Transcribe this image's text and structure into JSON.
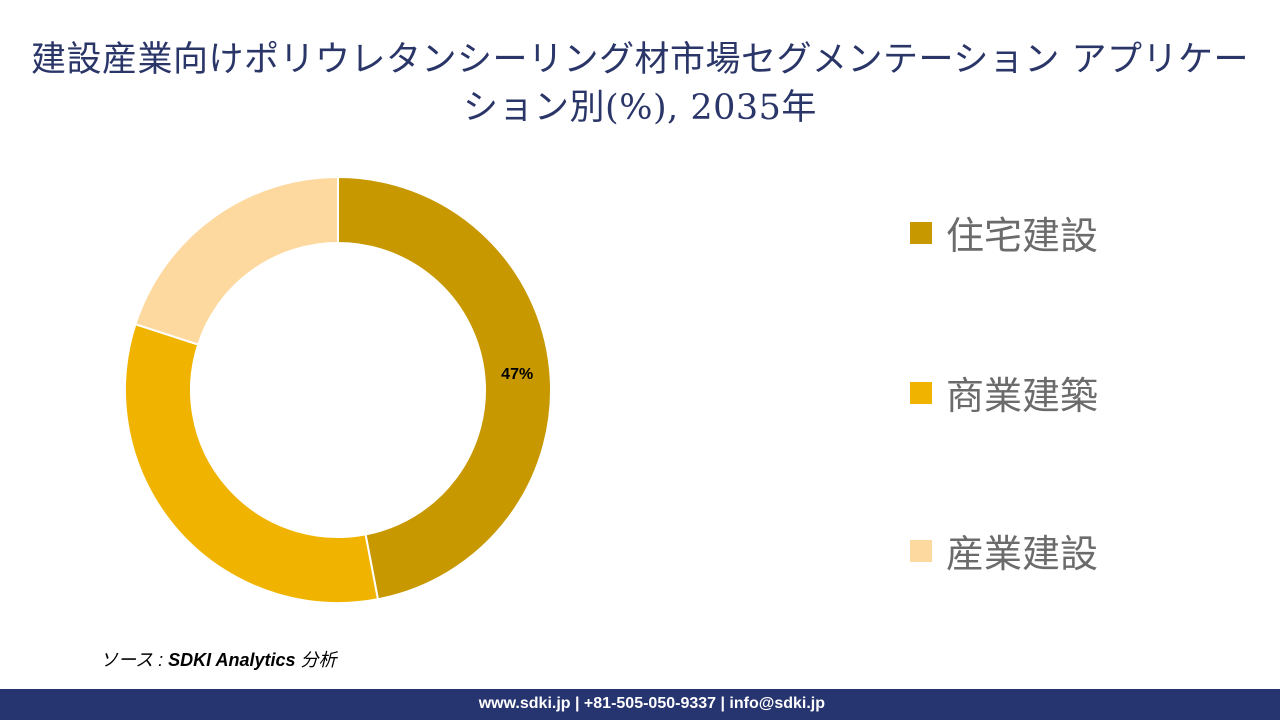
{
  "title": "建設産業向けポリウレタンシーリング材市場セグメンテーション アプリケーション別(%), 2035年",
  "chart_data": {
    "type": "pie",
    "variant": "donut",
    "title": "建設産業向けポリウレタンシーリング材市場セグメンテーション アプリケーション別(%), 2035年",
    "categories": [
      "住宅建設",
      "商業建築",
      "産業建設"
    ],
    "values": [
      47,
      33,
      20
    ],
    "data_labels": [
      "47%",
      "",
      ""
    ],
    "colors": [
      "#C89800",
      "#F0B400",
      "#FDD9A0"
    ],
    "legend_position": "right"
  },
  "source": {
    "prefix": "ソース : ",
    "name": "SDKI Analytics",
    "suffix": " 分析"
  },
  "footer": {
    "text": "www.sdki.jp | +81-505-050-9337 | info@sdki.jp",
    "color": "#263470"
  }
}
